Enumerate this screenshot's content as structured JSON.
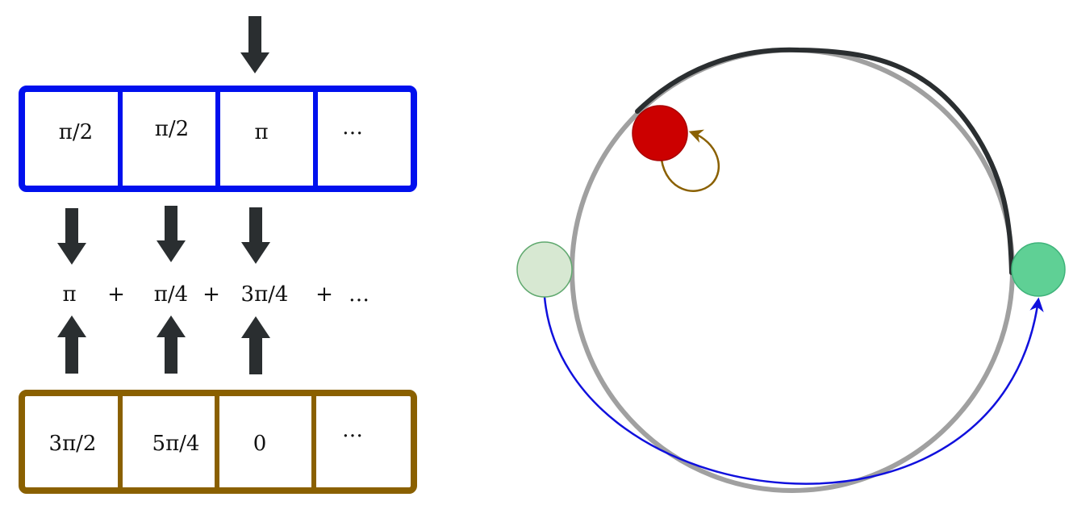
{
  "colors": {
    "top_row": "#0010ee",
    "bottom_row": "#8a6000",
    "arrow": "#2a2e30",
    "circle": "#a0a0a0",
    "arc_highlight": "#2a2e30",
    "red_node": "#cc0000",
    "light_green_node": "#d7e8d2",
    "green_node": "#5fd095",
    "loop_arrow": "#8a6000",
    "swap_arrow": "#1010dd"
  },
  "top_row": {
    "cells": [
      "π/2",
      "π/2",
      "π",
      "…"
    ]
  },
  "bottom_row": {
    "cells": [
      "3π/2",
      "5π/4",
      "0",
      "…"
    ]
  },
  "sum_expression": {
    "terms": [
      "π",
      "+",
      "π/4",
      "+",
      "3π/4",
      "+",
      "…"
    ]
  },
  "icons": {
    "pointer_arrow": "down-arrow-icon",
    "up_arrows": "up-arrow-icon",
    "down_arrows": "down-arrow-icon"
  }
}
